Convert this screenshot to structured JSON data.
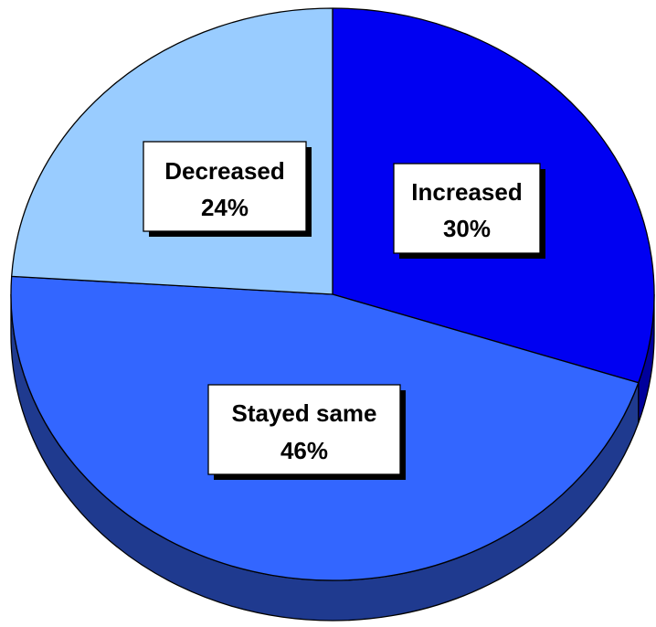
{
  "chart_data": {
    "type": "pie",
    "style": "3d",
    "slices": [
      {
        "name": "Increased",
        "label": "Increased",
        "value": 30,
        "value_label": "30%",
        "color": "#0000F2",
        "side_color": "#00009C"
      },
      {
        "name": "Stayed same",
        "label": "Stayed same",
        "value": 46,
        "value_label": "46%",
        "color": "#3366FF",
        "side_color": "#1F3A8F"
      },
      {
        "name": "Decreased",
        "label": "Decreased",
        "value": 24,
        "value_label": "24%",
        "color": "#99CCFF",
        "side_color": "#6E93B8"
      }
    ],
    "legend": "none"
  }
}
